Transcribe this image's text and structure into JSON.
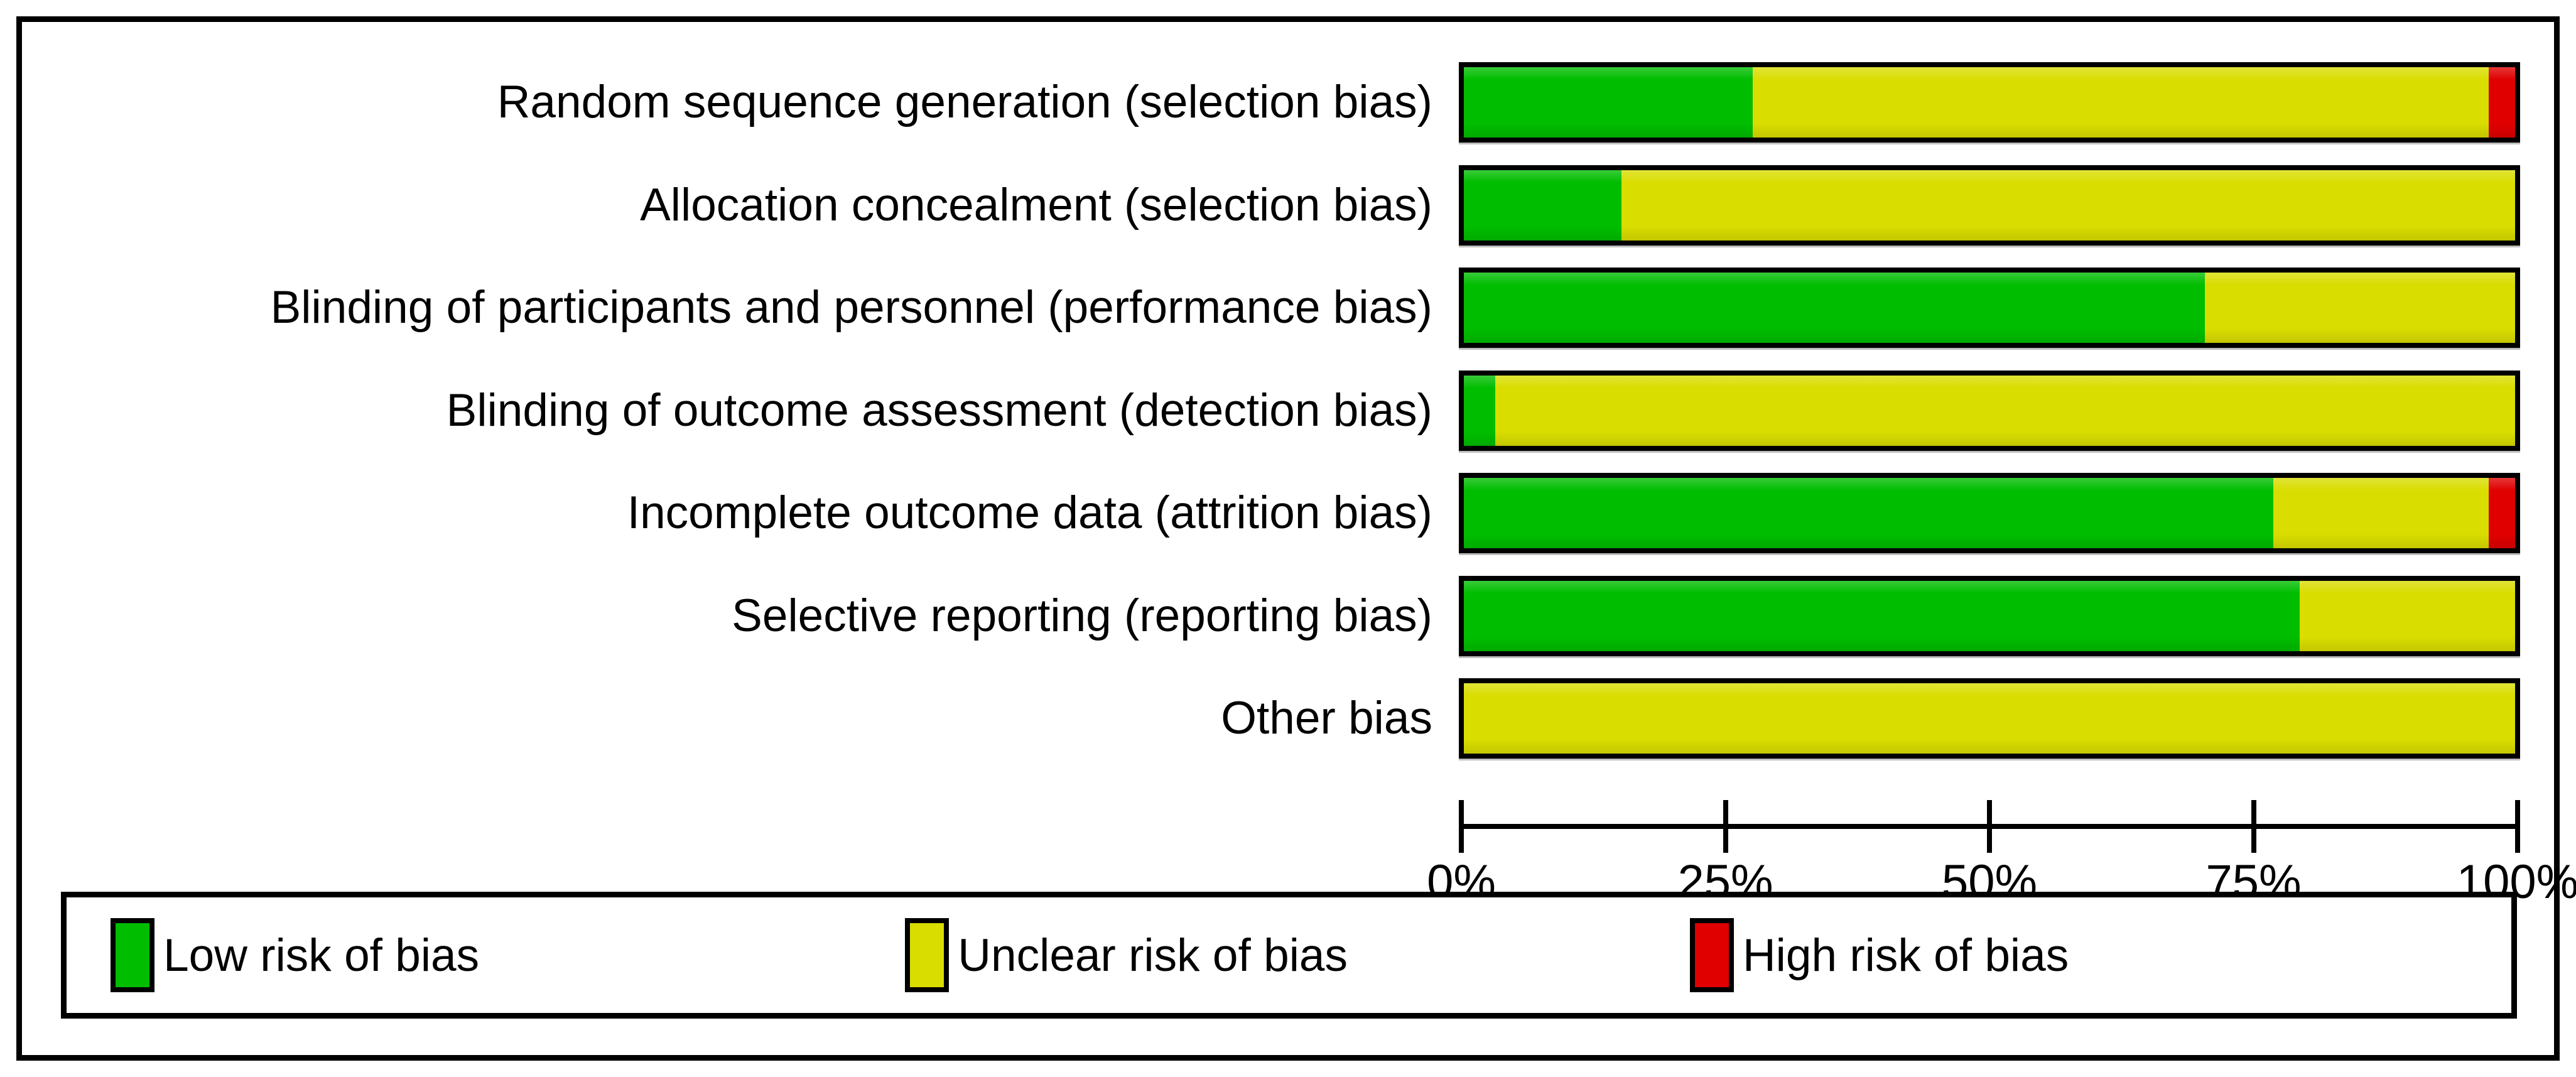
{
  "figure": {
    "background": "#ffffff",
    "frame_border_color": "#000000"
  },
  "colors": {
    "low_risk": "#00bd00",
    "unclear_risk": "#d9dd00",
    "high_risk": "#e00000",
    "outline": "#000000"
  },
  "chart_data": {
    "type": "bar",
    "orientation": "horizontal-stacked",
    "title": "",
    "xlabel": "",
    "ylabel": "",
    "x_axis": {
      "range": [
        0,
        100
      ],
      "tick_labels": [
        "0%",
        "25%",
        "50%",
        "75%",
        "100%"
      ],
      "unit": "percent"
    },
    "grid": false,
    "legend_position": "bottom",
    "categories": [
      "Random sequence generation (selection bias)",
      "Allocation concealment (selection bias)",
      "Blinding of participants and personnel (performance bias)",
      "Blinding of outcome assessment (detection bias)",
      "Incomplete outcome data (attrition bias)",
      "Selective reporting (reporting bias)",
      "Other bias"
    ],
    "series": [
      {
        "name": "Low risk of bias",
        "color_key": "low_risk",
        "values": [
          27.5,
          15,
          70.5,
          3,
          77,
          79.5,
          0
        ]
      },
      {
        "name": "Unclear risk of bias",
        "color_key": "unclear_risk",
        "values": [
          70,
          85,
          29.5,
          97,
          20.5,
          20.5,
          100
        ]
      },
      {
        "name": "High risk of bias",
        "color_key": "high_risk",
        "values": [
          2.5,
          0,
          0,
          0,
          2.5,
          0,
          0
        ]
      }
    ],
    "legend": [
      {
        "label": "Low risk of bias",
        "color_key": "low_risk"
      },
      {
        "label": "Unclear risk of bias",
        "color_key": "unclear_risk"
      },
      {
        "label": "High risk of bias",
        "color_key": "high_risk"
      }
    ]
  }
}
